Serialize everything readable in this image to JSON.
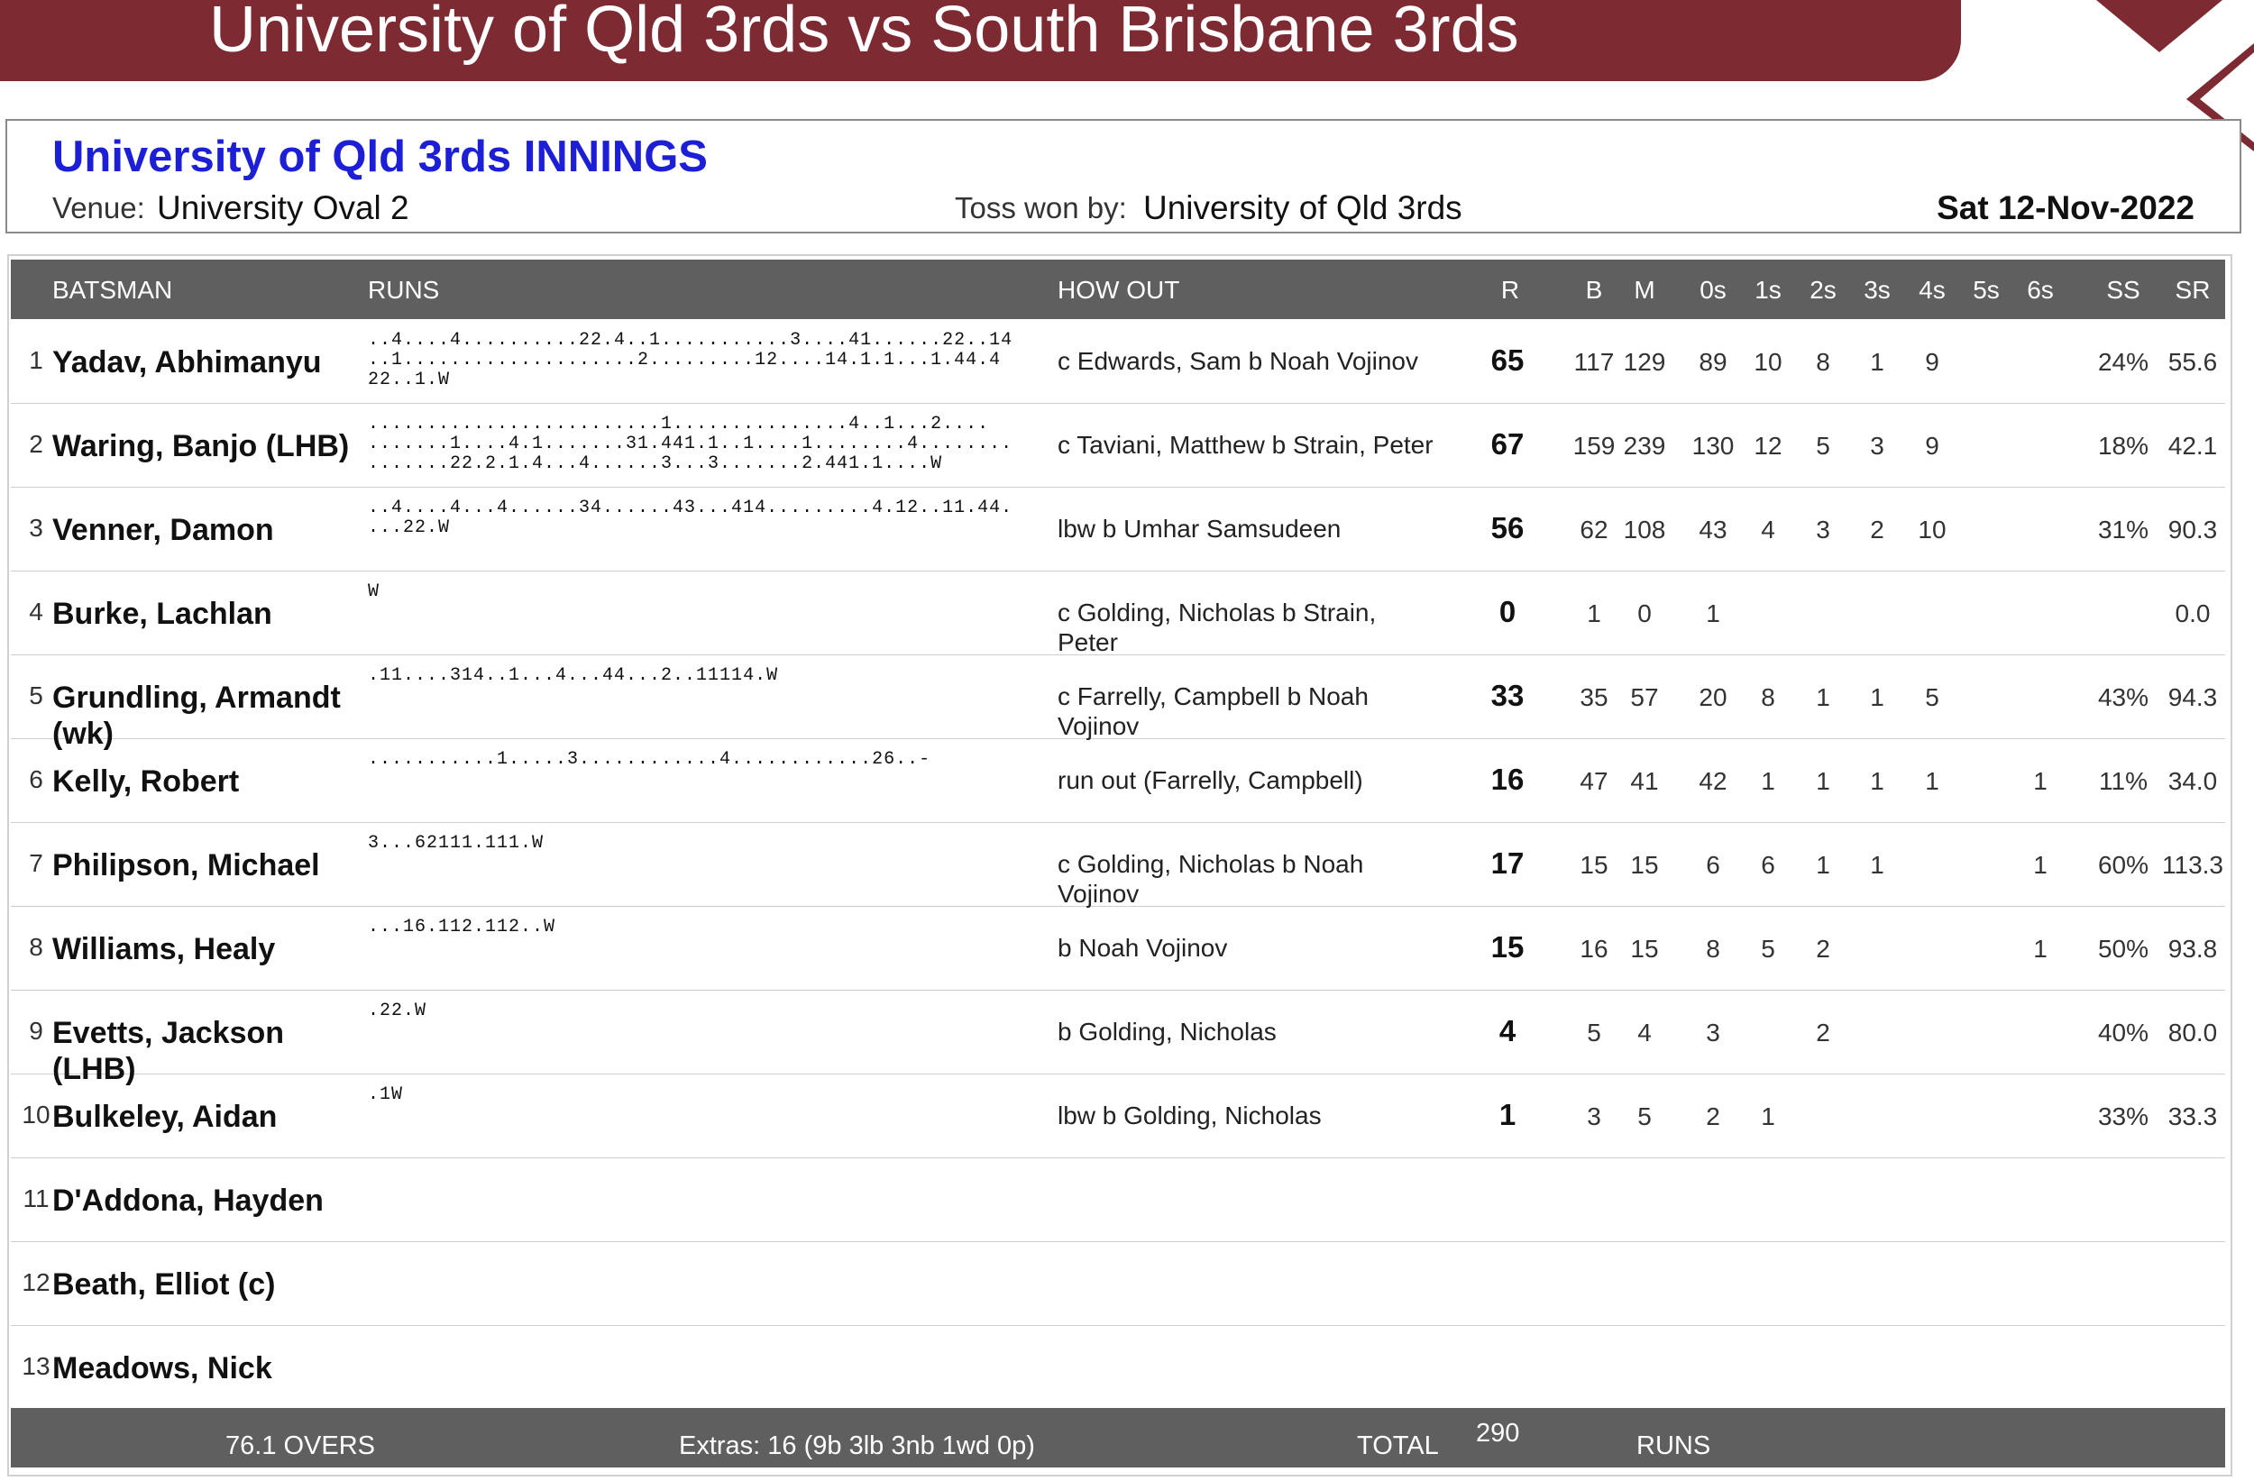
{
  "match_title": "University of Qld 3rds vs South Brisbane 3rds",
  "innings_title": "University of Qld 3rds INNINGS",
  "venue_label": "Venue:",
  "venue": "University Oval 2",
  "toss_label": "Toss won by:",
  "toss": "University of Qld 3rds",
  "date": "Sat 12-Nov-2022",
  "colors": {
    "banner": "#7e2a32",
    "title_blue": "#1d1fd6",
    "header_gray": "#5f5f5f"
  },
  "headers": {
    "batsman": "BATSMAN",
    "runs": "RUNS",
    "how_out": "HOW OUT",
    "r": "R",
    "b": "B",
    "m": "M",
    "s0": "0s",
    "s1": "1s",
    "s2": "2s",
    "s3": "3s",
    "s4": "4s",
    "s5": "5s",
    "s6": "6s",
    "ss": "SS",
    "sr": "SR"
  },
  "batsmen": [
    {
      "no": "1",
      "name": "Yadav, Abhimanyu",
      "runs": "..4....4..........22.4..1...........3....41......22..14\n..1....................2.........12....14.1.1...1.44.4\n22..1.W",
      "how_out": "c Edwards, Sam  b Noah Vojinov",
      "r": "65",
      "b": "117",
      "m": "129",
      "s0": "89",
      "s1": "10",
      "s2": "8",
      "s3": "1",
      "s4": "9",
      "s5": "",
      "s6": "",
      "ss": "24%",
      "sr": "55.6"
    },
    {
      "no": "2",
      "name": "Waring, Banjo (LHB)",
      "runs": ".........................1...............4..1...2....\n.......1....4.1.......31.441.1..1....1........4........\n.......22.2.1.4...4......3...3.......2.441.1....W",
      "how_out": "c Taviani, Matthew  b Strain, Peter",
      "r": "67",
      "b": "159",
      "m": "239",
      "s0": "130",
      "s1": "12",
      "s2": "5",
      "s3": "3",
      "s4": "9",
      "s5": "",
      "s6": "",
      "ss": "18%",
      "sr": "42.1"
    },
    {
      "no": "3",
      "name": "Venner, Damon",
      "runs": "..4....4...4......34......43...414.........4.12..11.44.\n...22.W",
      "how_out": "lbw  b Umhar Samsudeen",
      "r": "56",
      "b": "62",
      "m": "108",
      "s0": "43",
      "s1": "4",
      "s2": "3",
      "s3": "2",
      "s4": "10",
      "s5": "",
      "s6": "",
      "ss": "31%",
      "sr": "90.3"
    },
    {
      "no": "4",
      "name": "Burke, Lachlan",
      "runs": "W",
      "how_out": "c Golding, Nicholas  b Strain, Peter",
      "r": "0",
      "b": "1",
      "m": "0",
      "s0": "1",
      "s1": "",
      "s2": "",
      "s3": "",
      "s4": "",
      "s5": "",
      "s6": "",
      "ss": "",
      "sr": "0.0"
    },
    {
      "no": "5",
      "name": "Grundling, Armandt (wk)",
      "runs": ".11....314..1...4...44...2..11114.W",
      "how_out": "c Farrelly, Campbell  b Noah Vojinov",
      "r": "33",
      "b": "35",
      "m": "57",
      "s0": "20",
      "s1": "8",
      "s2": "1",
      "s3": "1",
      "s4": "5",
      "s5": "",
      "s6": "",
      "ss": "43%",
      "sr": "94.3"
    },
    {
      "no": "6",
      "name": "Kelly, Robert",
      "runs": "...........1.....3............4............26..-",
      "how_out": "run out (Farrelly, Campbell)",
      "r": "16",
      "b": "47",
      "m": "41",
      "s0": "42",
      "s1": "1",
      "s2": "1",
      "s3": "1",
      "s4": "1",
      "s5": "",
      "s6": "1",
      "ss": "11%",
      "sr": "34.0"
    },
    {
      "no": "7",
      "name": "Philipson, Michael",
      "runs": "3...62111.111.W",
      "how_out": "c Golding, Nicholas  b Noah Vojinov",
      "r": "17",
      "b": "15",
      "m": "15",
      "s0": "6",
      "s1": "6",
      "s2": "1",
      "s3": "1",
      "s4": "",
      "s5": "",
      "s6": "1",
      "ss": "60%",
      "sr": "113.3"
    },
    {
      "no": "8",
      "name": "Williams, Healy",
      "runs": "...16.112.112..W",
      "how_out": "b Noah Vojinov",
      "r": "15",
      "b": "16",
      "m": "15",
      "s0": "8",
      "s1": "5",
      "s2": "2",
      "s3": "",
      "s4": "",
      "s5": "",
      "s6": "1",
      "ss": "50%",
      "sr": "93.8"
    },
    {
      "no": "9",
      "name": "Evetts, Jackson (LHB)",
      "runs": ".22.W",
      "how_out": "b Golding, Nicholas",
      "r": "4",
      "b": "5",
      "m": "4",
      "s0": "3",
      "s1": "",
      "s2": "2",
      "s3": "",
      "s4": "",
      "s5": "",
      "s6": "",
      "ss": "40%",
      "sr": "80.0"
    },
    {
      "no": "10",
      "name": "Bulkeley, Aidan",
      "runs": ".1W",
      "how_out": "lbw  b Golding, Nicholas",
      "r": "1",
      "b": "3",
      "m": "5",
      "s0": "2",
      "s1": "1",
      "s2": "",
      "s3": "",
      "s4": "",
      "s5": "",
      "s6": "",
      "ss": "33%",
      "sr": "33.3"
    },
    {
      "no": "11",
      "name": "D'Addona, Hayden",
      "runs": "",
      "how_out": "",
      "r": "",
      "b": "",
      "m": "",
      "s0": "",
      "s1": "",
      "s2": "",
      "s3": "",
      "s4": "",
      "s5": "",
      "s6": "",
      "ss": "",
      "sr": ""
    },
    {
      "no": "12",
      "name": "Beath, Elliot (c)",
      "runs": "",
      "how_out": "",
      "r": "",
      "b": "",
      "m": "",
      "s0": "",
      "s1": "",
      "s2": "",
      "s3": "",
      "s4": "",
      "s5": "",
      "s6": "",
      "ss": "",
      "sr": ""
    },
    {
      "no": "13",
      "name": "Meadows, Nick",
      "runs": "",
      "how_out": "",
      "r": "",
      "b": "",
      "m": "",
      "s0": "",
      "s1": "",
      "s2": "",
      "s3": "",
      "s4": "",
      "s5": "",
      "s6": "",
      "ss": "",
      "sr": ""
    }
  ],
  "footer": {
    "overs": "76.1 OVERS",
    "extras": "Extras: 16 (9b  3lb  3nb  1wd  0p)",
    "total_label": "TOTAL",
    "total": "290",
    "runs_label": "RUNS"
  }
}
